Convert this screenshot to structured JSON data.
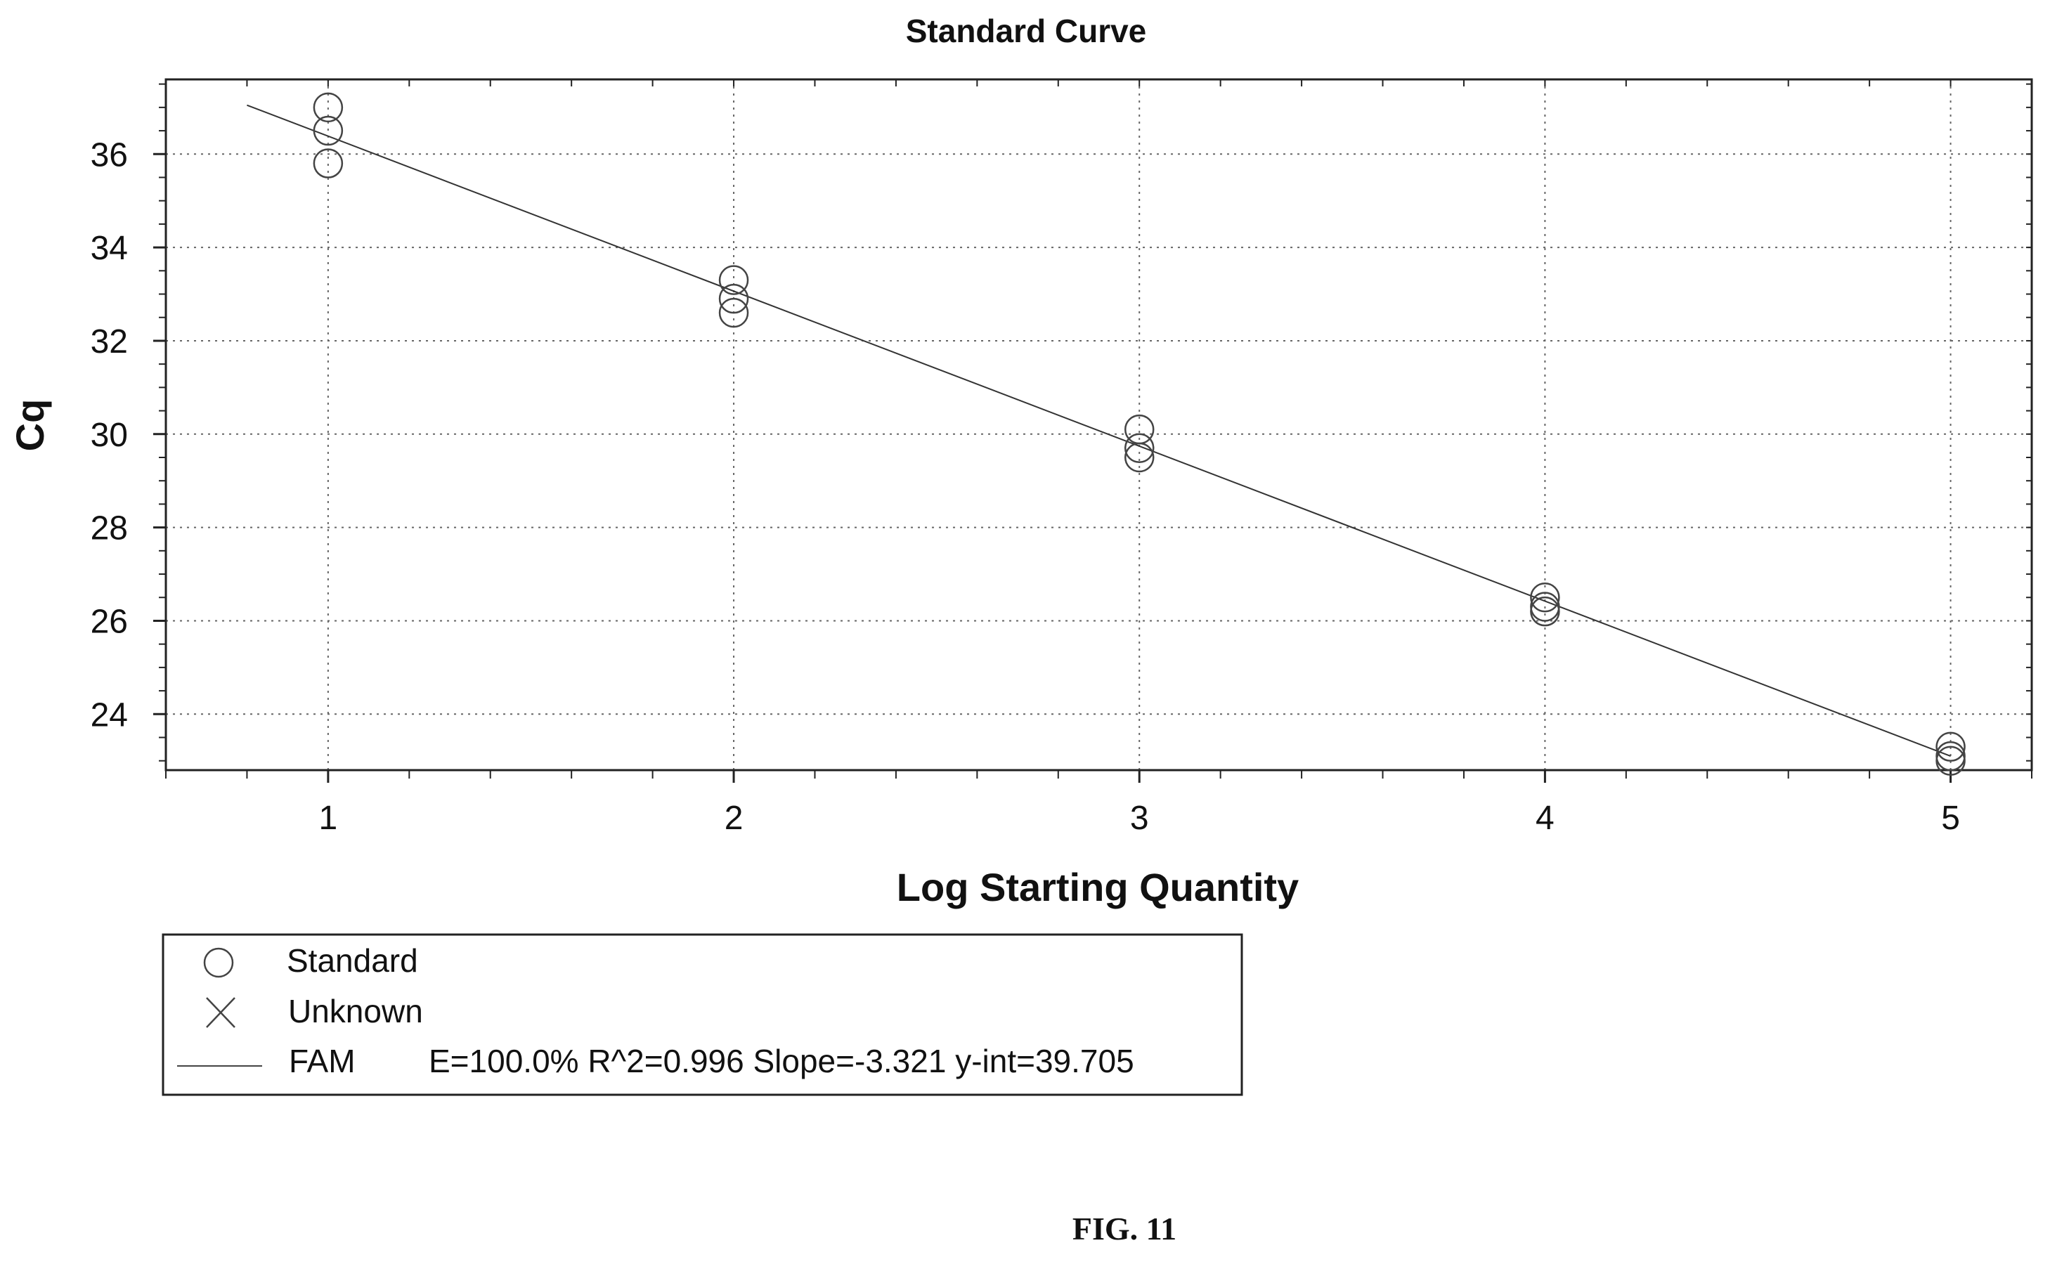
{
  "chart_data": {
    "type": "scatter",
    "title": "Standard Curve",
    "xlabel": "Log Starting Quantity",
    "ylabel": "Cq",
    "xlim": [
      0.6,
      5.2
    ],
    "ylim": [
      22.8,
      37.6
    ],
    "x_ticks": [
      1,
      2,
      3,
      4,
      5
    ],
    "y_ticks": [
      24,
      26,
      28,
      30,
      32,
      34,
      36
    ],
    "grid": true,
    "legend_position": "bottom-left",
    "series": [
      {
        "name": "Standard",
        "marker": "circle",
        "points": [
          {
            "x": 1,
            "y": 37.0
          },
          {
            "x": 1,
            "y": 36.5
          },
          {
            "x": 1,
            "y": 35.8
          },
          {
            "x": 2,
            "y": 33.3
          },
          {
            "x": 2,
            "y": 32.9
          },
          {
            "x": 2,
            "y": 32.6
          },
          {
            "x": 3,
            "y": 30.1
          },
          {
            "x": 3,
            "y": 29.7
          },
          {
            "x": 3,
            "y": 29.5
          },
          {
            "x": 4,
            "y": 26.5
          },
          {
            "x": 4,
            "y": 26.3
          },
          {
            "x": 4,
            "y": 26.2
          },
          {
            "x": 5,
            "y": 23.3
          },
          {
            "x": 5,
            "y": 23.1
          },
          {
            "x": 5,
            "y": 23.0
          }
        ]
      },
      {
        "name": "Unknown",
        "marker": "x",
        "points": []
      }
    ],
    "fit_line": {
      "name": "FAM",
      "slope": -3.321,
      "intercept": 39.705,
      "x_range": [
        0.8,
        5.0
      ],
      "stats_label": "E=100.0% R^2=0.996 Slope=-3.321 y-int=39.705"
    }
  },
  "legend": {
    "items": [
      {
        "symbol": "circle",
        "label": "Standard"
      },
      {
        "symbol": "x",
        "label": "Unknown"
      },
      {
        "symbol": "line",
        "label": "FAM"
      }
    ],
    "stats": "E=100.0% R^2=0.996 Slope=-3.321 y-int=39.705"
  },
  "caption": "FIG. 11",
  "colors": {
    "ink": "#222222",
    "grid": "#666666"
  }
}
